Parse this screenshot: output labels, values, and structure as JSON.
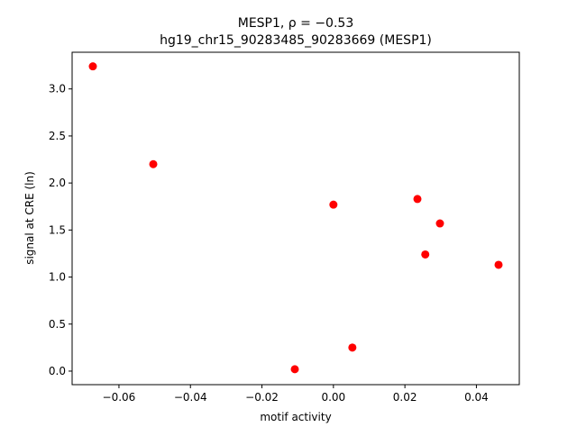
{
  "chart_data": {
    "type": "scatter",
    "title_line1": "MESP1, ρ = −0.53",
    "title_line2": "hg19_chr15_90283485_90283669 (MESP1)",
    "xlabel": "motif activity",
    "ylabel": "signal at CRE (ln)",
    "xlim": [
      -0.0731,
      0.052
    ],
    "ylim": [
      -0.144,
      3.39
    ],
    "xticks": [
      -0.06,
      -0.04,
      -0.02,
      0.0,
      0.02,
      0.04
    ],
    "xtick_labels": [
      "−0.06",
      "−0.04",
      "−0.02",
      "0.00",
      "0.02",
      "0.04"
    ],
    "yticks": [
      0.0,
      0.5,
      1.0,
      1.5,
      2.0,
      2.5,
      3.0
    ],
    "ytick_labels": [
      "0.0",
      "0.5",
      "1.0",
      "1.5",
      "2.0",
      "2.5",
      "3.0"
    ],
    "grid": false,
    "color": "#ff0000",
    "points": [
      {
        "x": -0.0673,
        "y": 3.24
      },
      {
        "x": -0.0504,
        "y": 2.2
      },
      {
        "x": 0.0,
        "y": 1.77
      },
      {
        "x": 0.0235,
        "y": 1.83
      },
      {
        "x": 0.0298,
        "y": 1.57
      },
      {
        "x": 0.0257,
        "y": 1.24
      },
      {
        "x": 0.0462,
        "y": 1.13
      },
      {
        "x": 0.0053,
        "y": 0.25
      },
      {
        "x": -0.0108,
        "y": 0.02
      }
    ]
  }
}
